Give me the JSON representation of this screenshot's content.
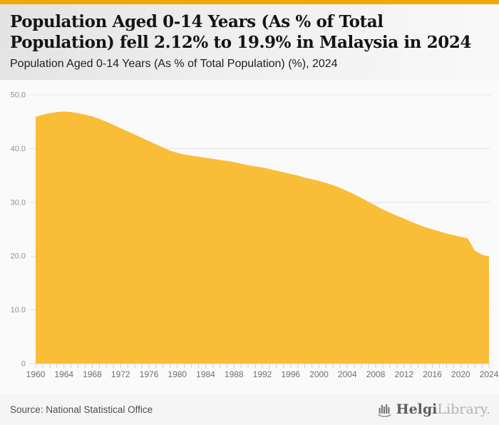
{
  "header": {
    "title": "Population Aged 0-14 Years (As % of Total Population) fell 2.12% to 19.9% in Malaysia in 2024",
    "subtitle": "Population Aged 0-14 Years (As % of Total Population) (%), 2024"
  },
  "footer": {
    "source": "Source: National Statistical Office",
    "logo": {
      "primary": "Helgi",
      "secondary": "Library."
    }
  },
  "colors": {
    "accent_bar": "#F2A705",
    "area_fill": "#FABD37",
    "gridline": "#e3e3e3",
    "axis_line": "#dadada",
    "tick": "#c2cddf",
    "y_label": "#8f8f8f",
    "x_label": "#6f6f6f"
  },
  "chart_data": {
    "type": "area",
    "title": "Population Aged 0-14 Years (As % of Total Population) (%), 2024",
    "series_name": "Population Aged 0-14 Years (As % of Total Population)",
    "unit": "%",
    "country": "Malaysia",
    "latest_value": 19.9,
    "latest_change_pct": -2.12,
    "ylim": [
      0,
      50
    ],
    "grid": "on",
    "legend": "none",
    "x": [
      1960,
      1961,
      1962,
      1963,
      1964,
      1965,
      1966,
      1967,
      1968,
      1969,
      1970,
      1971,
      1972,
      1973,
      1974,
      1975,
      1976,
      1977,
      1978,
      1979,
      1980,
      1981,
      1982,
      1983,
      1984,
      1985,
      1986,
      1987,
      1988,
      1989,
      1990,
      1991,
      1992,
      1993,
      1994,
      1995,
      1996,
      1997,
      1998,
      1999,
      2000,
      2001,
      2002,
      2003,
      2004,
      2005,
      2006,
      2007,
      2008,
      2009,
      2010,
      2011,
      2012,
      2013,
      2014,
      2015,
      2016,
      2017,
      2018,
      2019,
      2020,
      2021,
      2022,
      2023,
      2024
    ],
    "values": [
      45.9,
      46.3,
      46.6,
      46.8,
      46.9,
      46.8,
      46.6,
      46.3,
      46.0,
      45.5,
      45.0,
      44.4,
      43.8,
      43.2,
      42.6,
      42.0,
      41.4,
      40.8,
      40.2,
      39.6,
      39.2,
      38.9,
      38.7,
      38.5,
      38.3,
      38.1,
      37.9,
      37.7,
      37.5,
      37.2,
      36.9,
      36.7,
      36.5,
      36.2,
      35.9,
      35.6,
      35.3,
      35.0,
      34.6,
      34.3,
      34.0,
      33.6,
      33.2,
      32.7,
      32.1,
      31.5,
      30.8,
      30.1,
      29.4,
      28.7,
      28.1,
      27.5,
      27.0,
      26.4,
      25.9,
      25.4,
      25.0,
      24.6,
      24.2,
      23.9,
      23.6,
      23.3,
      21.0,
      20.3,
      19.9
    ],
    "yticks": [
      {
        "value": 50,
        "label": "50.0"
      },
      {
        "value": 40,
        "label": "40.0"
      },
      {
        "value": 30,
        "label": "30.0"
      },
      {
        "value": 20,
        "label": "20.0"
      },
      {
        "value": 10,
        "label": "10.0"
      },
      {
        "value": 0,
        "label": "0"
      }
    ],
    "xticks_labeled": [
      1960,
      1964,
      1968,
      1972,
      1976,
      1980,
      1984,
      1988,
      1992,
      1996,
      2000,
      2004,
      2008,
      2012,
      2016,
      2020,
      2024
    ],
    "xtick_minor_step": 1
  }
}
